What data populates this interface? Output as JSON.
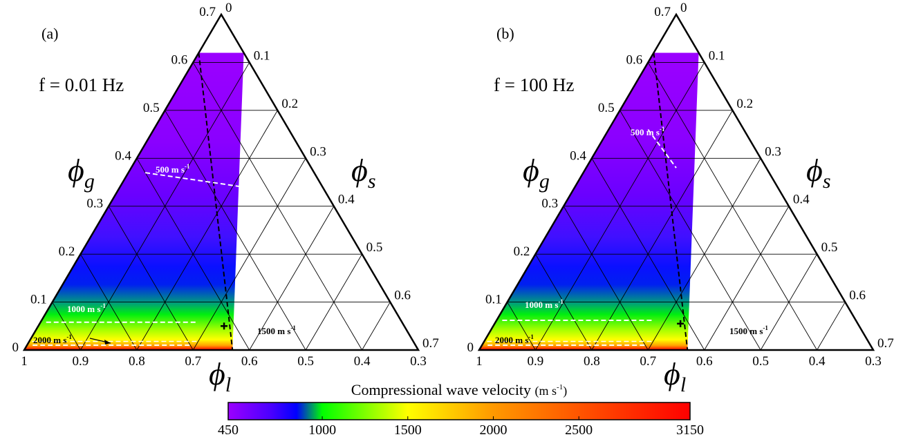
{
  "chart_data": [
    {
      "type": "heatmap",
      "subtype": "ternary",
      "panel_label": "(a)",
      "annotation": "f = 0.01 Hz",
      "axes": {
        "phi_g": {
          "symbol": "ϕ",
          "subscript": "g",
          "ticks": [
            "0",
            "0.1",
            "0.2",
            "0.3",
            "0.4",
            "0.5",
            "0.6",
            "0.7"
          ]
        },
        "phi_s": {
          "symbol": "ϕ",
          "subscript": "s",
          "ticks": [
            "0",
            "0.1",
            "0.2",
            "0.3",
            "0.4",
            "0.5",
            "0.6",
            "0.7"
          ]
        },
        "phi_l": {
          "symbol": "ϕ",
          "subscript": "l",
          "ticks": [
            "1",
            "0.9",
            "0.8",
            "0.7",
            "0.6",
            "0.5",
            "0.4",
            "0.3"
          ]
        }
      },
      "contours": [
        {
          "label": "500 m s",
          "sup": "-1",
          "value": 500,
          "color": "#ffffff",
          "points": [
            [
              0.03,
              0.37
            ],
            [
              0.22,
              0.34
            ]
          ]
        },
        {
          "label": "1000 m s",
          "sup": "-1",
          "value": 1000,
          "color": "#ffffff",
          "points": [
            [
              0.01,
              0.058
            ],
            [
              0.28,
              0.058
            ]
          ]
        },
        {
          "label": "1500 m s",
          "sup": "-1",
          "value": 1500,
          "color": "#000000",
          "points": []
        },
        {
          "label": "2000 m s",
          "sup": "-1",
          "value": 2000,
          "color": "#000000",
          "points": [
            [
              0.01,
              0.01
            ],
            [
              0.29,
              0.01
            ]
          ]
        }
      ],
      "marker": {
        "phi_g": 0.05,
        "phi_s": 0.33,
        "symbol": "+"
      }
    },
    {
      "type": "heatmap",
      "subtype": "ternary",
      "panel_label": "(b)",
      "annotation": "f = 100 Hz",
      "axes": {
        "phi_g": {
          "symbol": "ϕ",
          "subscript": "g",
          "ticks": [
            "0",
            "0.1",
            "0.2",
            "0.3",
            "0.4",
            "0.5",
            "0.6",
            "0.7"
          ]
        },
        "phi_s": {
          "symbol": "ϕ",
          "subscript": "s",
          "ticks": [
            "0",
            "0.1",
            "0.2",
            "0.3",
            "0.4",
            "0.5",
            "0.6",
            "0.7"
          ]
        },
        "phi_l": {
          "symbol": "ϕ",
          "subscript": "l",
          "ticks": [
            "1",
            "0.9",
            "0.8",
            "0.7",
            "0.6",
            "0.5",
            "0.4",
            "0.3"
          ]
        }
      },
      "contours": [
        {
          "label": "500 m s",
          "sup": "-1",
          "value": 500,
          "color": "#ffffff",
          "points": [
            [
              0.07,
              0.46
            ],
            [
              0.16,
              0.38
            ]
          ]
        },
        {
          "label": "1000 m s",
          "sup": "-1",
          "value": 1000,
          "color": "#ffffff",
          "points": [
            [
              0.01,
              0.062
            ],
            [
              0.28,
              0.062
            ]
          ]
        },
        {
          "label": "1500 m s",
          "sup": "-1",
          "value": 1500,
          "color": "#000000",
          "points": []
        },
        {
          "label": "2000 m s",
          "sup": "-1",
          "value": 2000,
          "color": "#000000",
          "points": [
            [
              0.01,
              0.01
            ],
            [
              0.29,
              0.01
            ]
          ]
        }
      ],
      "marker": {
        "phi_g": 0.055,
        "phi_s": 0.33,
        "symbol": "+"
      }
    }
  ],
  "colorbar": {
    "title": "Compressional wave velocity",
    "unit": "(m s",
    "unit_sup": "-1",
    "unit_close": ")",
    "ticks": [
      450,
      1000,
      1500,
      2000,
      2500,
      3150
    ],
    "tick_labels": [
      "450",
      "1000",
      "1500",
      "2000",
      "2500",
      "3150"
    ],
    "stops": [
      {
        "value": 450,
        "color": "#9b00ff"
      },
      {
        "value": 700,
        "color": "#4a00ff"
      },
      {
        "value": 850,
        "color": "#0000ff"
      },
      {
        "value": 1000,
        "color": "#00ff00"
      },
      {
        "value": 1500,
        "color": "#ffff00"
      },
      {
        "value": 2000,
        "color": "#ff9900"
      },
      {
        "value": 2500,
        "color": "#ff5500"
      },
      {
        "value": 3150,
        "color": "#ff0000"
      }
    ]
  }
}
